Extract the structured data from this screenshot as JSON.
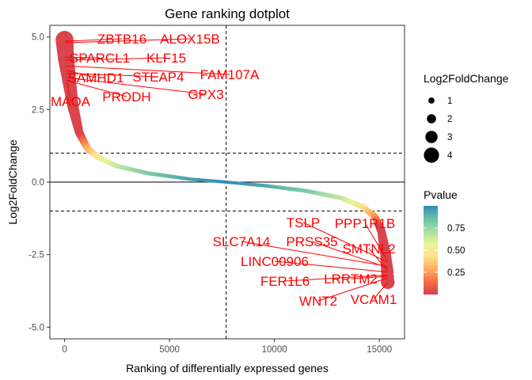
{
  "chart_data": {
    "type": "scatter",
    "title": "Gene ranking dotplot",
    "xlabel": "Ranking of differentially expressed genes",
    "ylabel": "Log2FoldChange",
    "xlim": [
      -700,
      16200
    ],
    "ylim": [
      -5.4,
      5.4
    ],
    "x_ticks": [
      0,
      5000,
      10000,
      15000
    ],
    "y_ticks": [
      -5.0,
      -2.5,
      0.0,
      2.5,
      5.0
    ],
    "y_tick_labels": [
      "-5.0",
      "-2.5",
      "0.0",
      "2.5",
      "5.0"
    ],
    "n_genes": 15400,
    "hline_solid": 0,
    "hlines_dashed": [
      1,
      -1
    ],
    "vline_dashed": 7700,
    "grid": false,
    "curve_profile": [
      {
        "rank": 0,
        "lfc": 4.9
      },
      {
        "rank": 60,
        "lfc": 4.3
      },
      {
        "rank": 200,
        "lfc": 3.6
      },
      {
        "rank": 400,
        "lfc": 2.6
      },
      {
        "rank": 700,
        "lfc": 1.7
      },
      {
        "rank": 1100,
        "lfc": 1.15
      },
      {
        "rank": 1600,
        "lfc": 0.85
      },
      {
        "rank": 2500,
        "lfc": 0.55
      },
      {
        "rank": 4000,
        "lfc": 0.3
      },
      {
        "rank": 6000,
        "lfc": 0.1
      },
      {
        "rank": 7700,
        "lfc": 0.0
      },
      {
        "rank": 9500,
        "lfc": -0.12
      },
      {
        "rank": 11500,
        "lfc": -0.3
      },
      {
        "rank": 13200,
        "lfc": -0.55
      },
      {
        "rank": 14200,
        "lfc": -0.85
      },
      {
        "rank": 14800,
        "lfc": -1.2
      },
      {
        "rank": 15100,
        "lfc": -1.7
      },
      {
        "rank": 15300,
        "lfc": -2.5
      },
      {
        "rank": 15380,
        "lfc": -3.1
      },
      {
        "rank": 15400,
        "lfc": -3.45
      }
    ],
    "size_legend": {
      "title": "Log2FoldChange",
      "entries": [
        {
          "label": "1",
          "value": 1
        },
        {
          "label": "2",
          "value": 2
        },
        {
          "label": "3",
          "value": 3
        },
        {
          "label": "4",
          "value": 4
        }
      ]
    },
    "color_legend": {
      "title": "Pvalue",
      "ticks": [
        {
          "label": "0.75",
          "value": 0.75
        },
        {
          "label": "0.50",
          "value": 0.5
        },
        {
          "label": "0.25",
          "value": 0.25
        }
      ],
      "range": [
        0.0,
        1.0
      ],
      "palette": "Spectral",
      "colors": [
        "#d53e4f",
        "#f46d43",
        "#fdae61",
        "#fee08b",
        "#e6f598",
        "#abdda4",
        "#66c2a5",
        "#3288bd"
      ]
    },
    "highlight_color": "#ff0000",
    "labeled_genes": [
      {
        "gene": "ZBTB16",
        "rank": 10,
        "lfc": 4.85
      },
      {
        "gene": "ALOX15B",
        "rank": 20,
        "lfc": 4.8
      },
      {
        "gene": "SPARCL1",
        "rank": 40,
        "lfc": 4.3
      },
      {
        "gene": "KLF15",
        "rank": 50,
        "lfc": 4.2
      },
      {
        "gene": "FAM107A",
        "rank": 60,
        "lfc": 4.0
      },
      {
        "gene": "SAMHD1",
        "rank": 80,
        "lfc": 3.85
      },
      {
        "gene": "STEAP4",
        "rank": 90,
        "lfc": 3.75
      },
      {
        "gene": "GPX3",
        "rank": 100,
        "lfc": 3.6
      },
      {
        "gene": "PRODH",
        "rank": 110,
        "lfc": 3.5
      },
      {
        "gene": "MAOA",
        "rank": 130,
        "lfc": 3.45
      },
      {
        "gene": "TSLP",
        "rank": 15380,
        "lfc": -2.75
      },
      {
        "gene": "PPP1R1B",
        "rank": 15385,
        "lfc": -2.7
      },
      {
        "gene": "SLC7A14",
        "rank": 15390,
        "lfc": -2.9
      },
      {
        "gene": "PRSS35",
        "rank": 15392,
        "lfc": -2.95
      },
      {
        "gene": "SMTNL2",
        "rank": 15395,
        "lfc": -3.05
      },
      {
        "gene": "LINC00906",
        "rank": 15396,
        "lfc": -3.1
      },
      {
        "gene": "FER1L6",
        "rank": 15397,
        "lfc": -3.2
      },
      {
        "gene": "LRRTM2",
        "rank": 15398,
        "lfc": -3.25
      },
      {
        "gene": "WNT2",
        "rank": 15399,
        "lfc": -3.3
      },
      {
        "gene": "VCAM1",
        "rank": 15400,
        "lfc": -3.45
      }
    ]
  }
}
